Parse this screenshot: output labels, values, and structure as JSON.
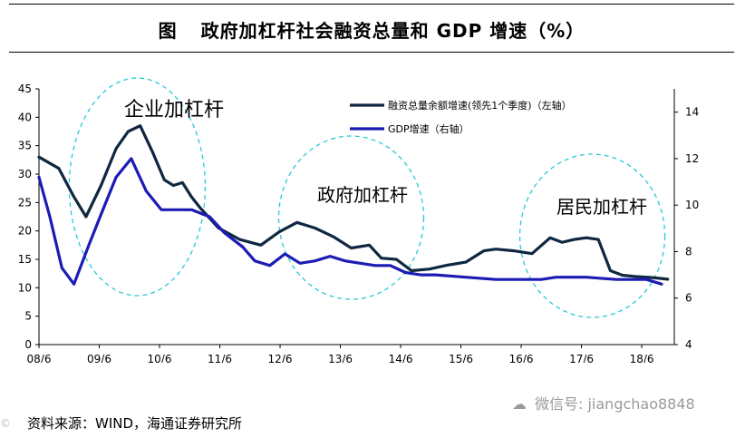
{
  "header": {
    "figure_label": "图",
    "title": "政府加杠杆社会融资总量和 GDP 增速（%）"
  },
  "chart_data": {
    "type": "line",
    "title": "政府加杠杆社会融资总量和 GDP 增速（%）",
    "x_ticks": [
      "08/6",
      "09/6",
      "10/6",
      "11/6",
      "12/6",
      "13/6",
      "14/6",
      "15/6",
      "16/6",
      "17/6",
      "18/6"
    ],
    "x_range": [
      "2008-06",
      "2018-12"
    ],
    "y_left": {
      "min": 0,
      "max": 45,
      "ticks": [
        0,
        5,
        10,
        15,
        20,
        25,
        30,
        35,
        40,
        45
      ]
    },
    "y_right": {
      "min": 4,
      "max": 15,
      "ticks": [
        4,
        6,
        8,
        10,
        12,
        14
      ]
    },
    "grid": false,
    "legend_position": "top-right",
    "series": [
      {
        "name": "融资总量余额增速(领先1个季度)（左轴）",
        "axis": "left",
        "color": "#0f2740",
        "x": [
          2008.42,
          2008.75,
          2009.0,
          2009.2,
          2009.45,
          2009.7,
          2009.9,
          2010.1,
          2010.3,
          2010.5,
          2010.65,
          2010.8,
          2010.95,
          2011.1,
          2011.4,
          2011.75,
          2012.1,
          2012.4,
          2012.7,
          2013.0,
          2013.3,
          2013.6,
          2013.9,
          2014.1,
          2014.35,
          2014.6,
          2014.9,
          2015.2,
          2015.5,
          2015.8,
          2016.0,
          2016.3,
          2016.6,
          2016.9,
          2017.1,
          2017.3,
          2017.5,
          2017.7,
          2017.9,
          2018.1,
          2018.3,
          2018.6,
          2018.85
        ],
        "values": [
          33,
          31,
          26,
          22.5,
          28,
          34.5,
          37.5,
          38.5,
          34,
          29,
          28,
          28.5,
          26,
          24,
          20.5,
          18.5,
          17.5,
          19.8,
          21.5,
          20.5,
          19,
          17,
          17.5,
          15.2,
          15,
          13,
          13.3,
          14,
          14.5,
          16.5,
          16.8,
          16.5,
          16,
          18.8,
          18,
          18.5,
          18.8,
          18.5,
          13,
          12.2,
          12,
          11.8,
          11.5
        ]
      },
      {
        "name": "GDP增速（右轴）",
        "axis": "right",
        "color": "#1c1cb4",
        "x": [
          2008.42,
          2008.6,
          2008.8,
          2009.0,
          2009.25,
          2009.45,
          2009.7,
          2009.95,
          2010.2,
          2010.45,
          2010.7,
          2010.95,
          2011.25,
          2011.5,
          2011.8,
          2012.0,
          2012.25,
          2012.5,
          2012.75,
          2013.0,
          2013.25,
          2013.5,
          2013.75,
          2014.0,
          2014.25,
          2014.5,
          2014.75,
          2015.0,
          2015.5,
          2016.0,
          2016.5,
          2016.75,
          2017.0,
          2017.5,
          2018.0,
          2018.25,
          2018.5,
          2018.75
        ],
        "values": [
          11.2,
          9.5,
          7.3,
          6.6,
          8.3,
          9.6,
          11.2,
          12.0,
          10.6,
          9.8,
          9.8,
          9.8,
          9.5,
          8.8,
          8.2,
          7.6,
          7.4,
          7.9,
          7.5,
          7.6,
          7.8,
          7.6,
          7.5,
          7.4,
          7.4,
          7.1,
          7.0,
          7.0,
          6.9,
          6.8,
          6.8,
          6.8,
          6.9,
          6.9,
          6.8,
          6.8,
          6.8,
          6.6
        ]
      }
    ],
    "annotations": [
      "企业加杠杆",
      "政府加杠杆",
      "居民加杠杆"
    ]
  },
  "source_text": "资料来源：WIND，海通证券研究所",
  "watermark": {
    "icon": "wechat-icon",
    "text": "微信号: jiangchao8848"
  },
  "corner_mark": "©"
}
